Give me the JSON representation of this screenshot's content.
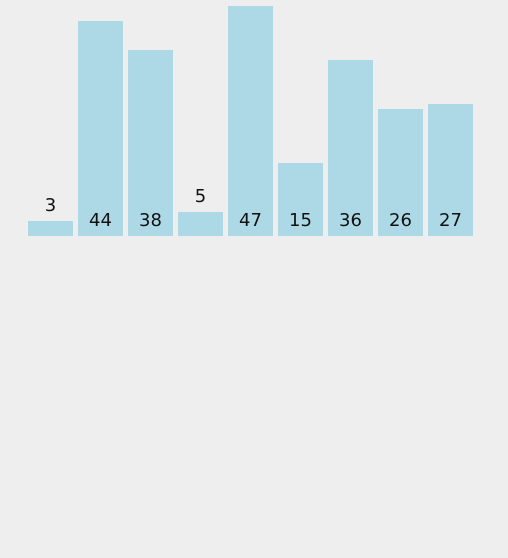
{
  "chart_data": {
    "type": "bar",
    "title": "",
    "xlabel": "",
    "ylabel": "",
    "values": [
      3,
      44,
      38,
      5,
      47,
      15,
      36,
      26,
      27
    ],
    "labels": [
      "3",
      "44",
      "38",
      "5",
      "47",
      "15",
      "36",
      "26",
      "27"
    ],
    "ylim": [
      0,
      47
    ],
    "bar_color": "#add8e6",
    "background_color": "#eeeeee",
    "grid": false,
    "legend": "none"
  }
}
